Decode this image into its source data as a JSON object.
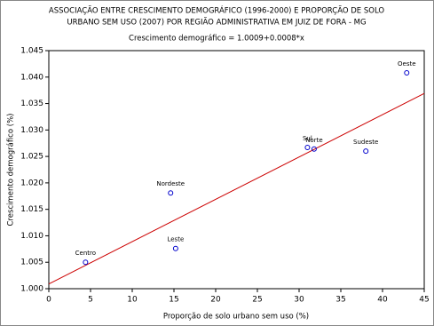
{
  "chart_data": {
    "type": "scatter",
    "title": "ASSOCIAÇÃO ENTRE CRESCIMENTO DEMOGRÁFICO (1996-2000)  E PROPORÇÃO DE SOLO",
    "title_line2": "URBANO SEM USO (2007) POR REGIÃO ADMINISTRATIVA EM JUIZ DE FORA - MG",
    "subtitle": "Crescimento demográfico = 1.0009+0.0008*x",
    "x_label": "Proporção de solo urbano sem uso (%)",
    "y_label": "Crescimento demográfico (%)",
    "point_labels": [
      "Centro",
      "Leste",
      "Nordeste",
      "Sul",
      "Norte",
      "Sudeste",
      "Oeste"
    ],
    "x": [
      4.4,
      15.2,
      14.6,
      31.0,
      31.8,
      38.0,
      42.9
    ],
    "values": [
      1.005,
      1.0076,
      1.0181,
      1.0267,
      1.0264,
      1.026,
      1.0408
    ],
    "color": "#0000cc",
    "fit_line": {
      "intercept": 1.0009,
      "slope": 0.0008,
      "color": "#cc0000"
    },
    "xlim": [
      0,
      45
    ],
    "ylim": [
      1.0,
      1.045
    ],
    "xticks": [
      0,
      5,
      10,
      15,
      20,
      25,
      30,
      35,
      40,
      45
    ],
    "yticks": [
      {
        "value": 1.0,
        "label": "1.000"
      },
      1.005,
      {
        "value": 1.01,
        "label": "1.010"
      },
      1.015,
      {
        "value": 1.02,
        "label": "1.020"
      },
      1.025,
      {
        "value": 1.03,
        "label": "1.030"
      },
      1.035,
      {
        "value": 1.04,
        "label": "1.040"
      },
      1.045
    ]
  }
}
